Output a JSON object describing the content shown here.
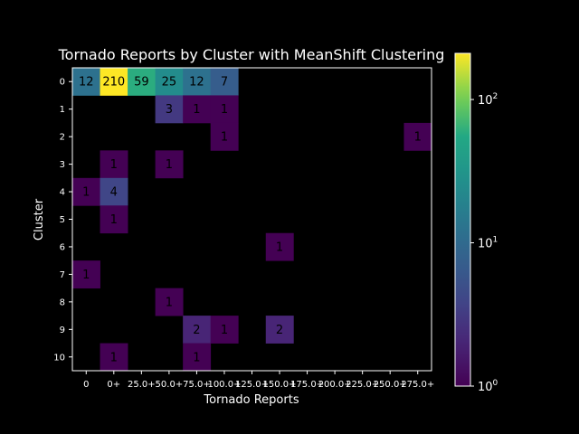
{
  "chart_data": {
    "type": "heatmap",
    "title": "Tornado Reports by Cluster with MeanShift Clustering",
    "xlabel": "Tornado Reports",
    "ylabel": "Cluster",
    "x_categories": [
      "0",
      "0+",
      "25.0+",
      "50.0+",
      "75.0+",
      "100.0+",
      "125.0+",
      "150.0+",
      "175.0+",
      "200.0+",
      "225.0+",
      "250.0+",
      "275.0+"
    ],
    "y_categories": [
      "0",
      "1",
      "2",
      "3",
      "4",
      "5",
      "6",
      "7",
      "8",
      "9",
      "10"
    ],
    "values": [
      [
        12,
        210,
        59,
        25,
        12,
        7,
        0,
        0,
        0,
        0,
        0,
        0,
        0
      ],
      [
        0,
        0,
        0,
        3,
        1,
        1,
        0,
        0,
        0,
        0,
        0,
        0,
        0
      ],
      [
        0,
        0,
        0,
        0,
        0,
        1,
        0,
        0,
        0,
        0,
        0,
        0,
        1
      ],
      [
        0,
        1,
        0,
        1,
        0,
        0,
        0,
        0,
        0,
        0,
        0,
        0,
        0
      ],
      [
        1,
        4,
        0,
        0,
        0,
        0,
        0,
        0,
        0,
        0,
        0,
        0,
        0
      ],
      [
        0,
        1,
        0,
        0,
        0,
        0,
        0,
        0,
        0,
        0,
        0,
        0,
        0
      ],
      [
        0,
        0,
        0,
        0,
        0,
        0,
        0,
        1,
        0,
        0,
        0,
        0,
        0
      ],
      [
        1,
        0,
        0,
        0,
        0,
        0,
        0,
        0,
        0,
        0,
        0,
        0,
        0
      ],
      [
        0,
        0,
        0,
        1,
        0,
        0,
        0,
        0,
        0,
        0,
        0,
        0,
        0
      ],
      [
        0,
        0,
        0,
        0,
        2,
        1,
        0,
        2,
        0,
        0,
        0,
        0,
        0
      ],
      [
        0,
        1,
        0,
        0,
        1,
        0,
        0,
        0,
        0,
        0,
        0,
        0,
        0
      ]
    ],
    "colormap": "viridis",
    "scale": "log",
    "vmin": 1,
    "vmax": 210,
    "zero_color": "#000000",
    "colorbar": {
      "ticks": [
        1,
        10,
        100
      ],
      "tick_labels": [
        {
          "base": "10",
          "exp": "0"
        },
        {
          "base": "10",
          "exp": "1"
        },
        {
          "base": "10",
          "exp": "2"
        }
      ]
    }
  }
}
